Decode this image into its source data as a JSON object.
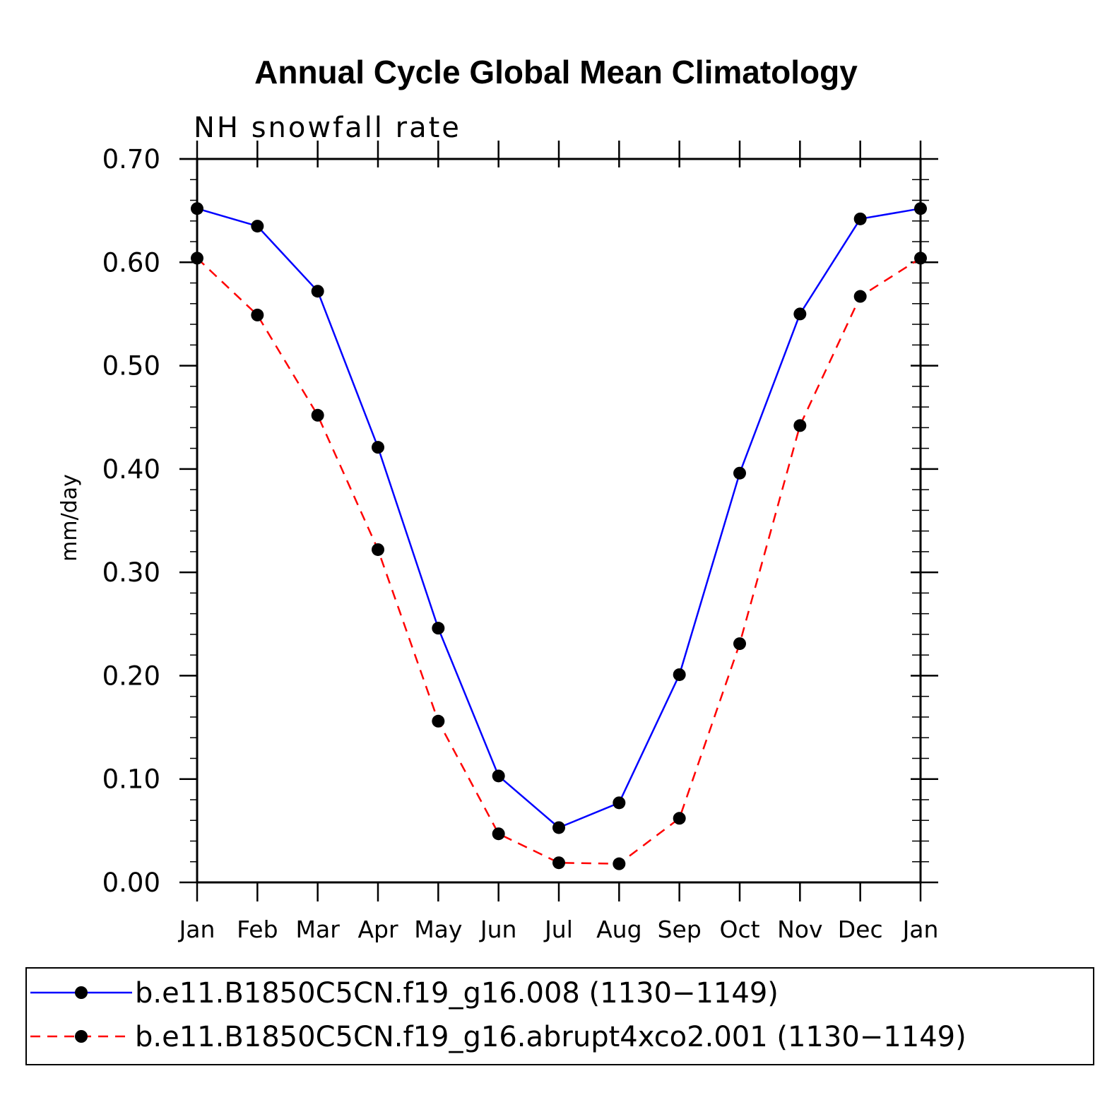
{
  "chart_data": {
    "type": "line",
    "title": "Annual Cycle Global Mean Climatology",
    "subtitle": "NH snowfall rate",
    "xlabel": "",
    "ylabel": "mm/day",
    "categories": [
      "Jan",
      "Feb",
      "Mar",
      "Apr",
      "May",
      "Jun",
      "Jul",
      "Aug",
      "Sep",
      "Oct",
      "Nov",
      "Dec",
      "Jan"
    ],
    "ylim": [
      0.0,
      0.7
    ],
    "yticks": [
      "0.00",
      "0.10",
      "0.20",
      "0.30",
      "0.40",
      "0.50",
      "0.60",
      "0.70"
    ],
    "ytick_values": [
      0.0,
      0.1,
      0.2,
      0.3,
      0.4,
      0.5,
      0.6,
      0.7
    ],
    "legend_position": "bottom",
    "series": [
      {
        "name": "b.e11.B1850C5CN.f19_g16.008 (1130−1149)",
        "color": "#0000ff",
        "dash": "solid",
        "values": [
          0.652,
          0.635,
          0.572,
          0.421,
          0.246,
          0.103,
          0.053,
          0.077,
          0.201,
          0.396,
          0.55,
          0.642,
          0.652
        ]
      },
      {
        "name": "b.e11.B1850C5CN.f19_g16.abrupt4xco2.001 (1130−1149)",
        "color": "#ff0000",
        "dash": "dashed",
        "values": [
          0.604,
          0.549,
          0.452,
          0.322,
          0.156,
          0.047,
          0.019,
          0.018,
          0.062,
          0.231,
          0.442,
          0.567,
          0.604
        ]
      }
    ]
  }
}
